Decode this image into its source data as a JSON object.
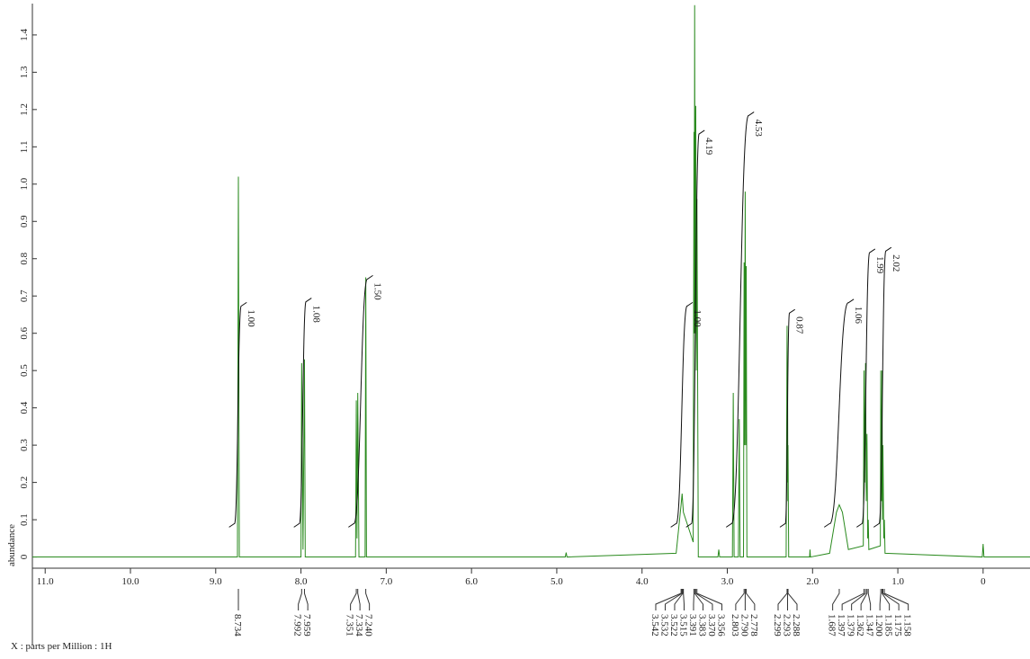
{
  "chart_data": {
    "type": "line",
    "color": "#2a8a1e",
    "xlabel": "X : parts per Million : 1H",
    "ylabel": "abundance",
    "xlim": [
      11.15,
      -0.55
    ],
    "ylim": [
      -0.03,
      1.46
    ],
    "xticks": [
      {
        "value": 11,
        "label": "11.0"
      },
      {
        "value": 10,
        "label": "10.0"
      },
      {
        "value": 9,
        "label": "9.0"
      },
      {
        "value": 8,
        "label": "8.0"
      },
      {
        "value": 7,
        "label": "7.0"
      },
      {
        "value": 6,
        "label": "6.0"
      },
      {
        "value": 5,
        "label": "5.0"
      },
      {
        "value": 4,
        "label": "4.0"
      },
      {
        "value": 3,
        "label": "3.0"
      },
      {
        "value": 2,
        "label": "2.0"
      },
      {
        "value": 1,
        "label": "1.0"
      },
      0
    ],
    "yticks": [
      0,
      0.1,
      0.2,
      0.3,
      0.4,
      0.5,
      0.6,
      0.7,
      0.8,
      0.9,
      {
        "value": 1,
        "label": "1.0"
      },
      1.1,
      1.2,
      1.3,
      1.4
    ],
    "x": [
      11.15,
      8.745,
      8.734,
      8.723,
      8.0,
      7.992,
      7.976,
      7.959,
      7.95,
      7.36,
      7.351,
      7.343,
      7.334,
      7.32,
      7.248,
      7.24,
      7.232,
      4.9,
      4.89,
      4.88,
      3.6,
      3.542,
      3.53,
      3.515,
      3.4,
      3.391,
      3.387,
      3.383,
      3.377,
      3.37,
      3.363,
      3.356,
      3.34,
      3.11,
      3.1,
      3.09,
      2.94,
      2.93,
      2.92,
      2.87,
      2.86,
      2.85,
      2.81,
      2.803,
      2.797,
      2.79,
      2.784,
      2.778,
      2.77,
      2.31,
      2.299,
      2.296,
      2.293,
      2.29,
      2.288,
      2.28,
      2.035,
      2.03,
      2.025,
      1.8,
      1.72,
      1.687,
      1.65,
      1.58,
      1.405,
      1.397,
      1.388,
      1.379,
      1.37,
      1.362,
      1.354,
      1.347,
      1.34,
      1.205,
      1.2,
      1.192,
      1.185,
      1.18,
      1.175,
      1.165,
      1.158,
      1.15,
      0.01,
      0.0,
      -0.01,
      -0.55
    ],
    "values": [
      0,
      0,
      1.02,
      0,
      0,
      0.52,
      0.02,
      0.53,
      0,
      0,
      0.42,
      0.05,
      0.44,
      0,
      0,
      0.75,
      0,
      0,
      0.012,
      0,
      0.01,
      0.14,
      0.17,
      0.12,
      0.04,
      1.14,
      0.6,
      1.48,
      0.6,
      1.21,
      0.5,
      0.96,
      0,
      0,
      0.02,
      0,
      0,
      0.44,
      0,
      0,
      0.37,
      0,
      0,
      0.79,
      0.3,
      0.98,
      0.3,
      0.78,
      0,
      0,
      0.62,
      0.2,
      0.5,
      0.15,
      0.3,
      0,
      0,
      0.02,
      0,
      0.01,
      0.12,
      0.14,
      0.12,
      0.02,
      0.03,
      0.5,
      0.2,
      0.52,
      0.15,
      0.33,
      0.05,
      0.1,
      0.02,
      0.03,
      0.5,
      0.15,
      0.5,
      0.1,
      0.3,
      0.05,
      0.1,
      0.01,
      0,
      0.035,
      0,
      0
    ],
    "integrals": [
      {
        "value": 1,
        "label": "1.00",
        "range": [
          8.78,
          8.7
        ]
      },
      {
        "value": 1.08,
        "label": "1.08",
        "range": [
          8.02,
          7.94
        ]
      },
      {
        "value": 1.5,
        "label": "1.50",
        "range": [
          7.38,
          7.22
        ]
      },
      {
        "value": 1,
        "label": "1.00",
        "range": [
          3.6,
          3.47
        ]
      },
      {
        "value": 4.19,
        "label": "4.19",
        "range": [
          3.42,
          3.33
        ]
      },
      {
        "value": 4.53,
        "label": "4.53",
        "range": [
          2.95,
          2.75
        ]
      },
      {
        "value": 0.87,
        "label": "0.87",
        "range": [
          2.32,
          2.27
        ]
      },
      {
        "value": 1.06,
        "label": "1.06",
        "range": [
          1.8,
          1.58
        ]
      },
      {
        "value": 1.99,
        "label": "1.99",
        "range": [
          1.42,
          1.33
        ]
      },
      {
        "value": 2.02,
        "label": "2.02",
        "range": [
          1.22,
          1.14
        ]
      }
    ],
    "peak_labels": [
      "8.734",
      "7.992",
      "7.959",
      "7.351",
      "7.334",
      "7.240",
      "3.542",
      "3.532",
      "3.522",
      "3.515",
      "3.391",
      "3.383",
      "3.370",
      "3.356",
      "2.803",
      "2.790",
      "2.778",
      "2.299",
      "2.293",
      "2.288",
      "1.687",
      "1.397",
      "1.379",
      "1.362",
      "1.347",
      "1.200",
      "1.185",
      "1.175",
      "1.158"
    ]
  }
}
